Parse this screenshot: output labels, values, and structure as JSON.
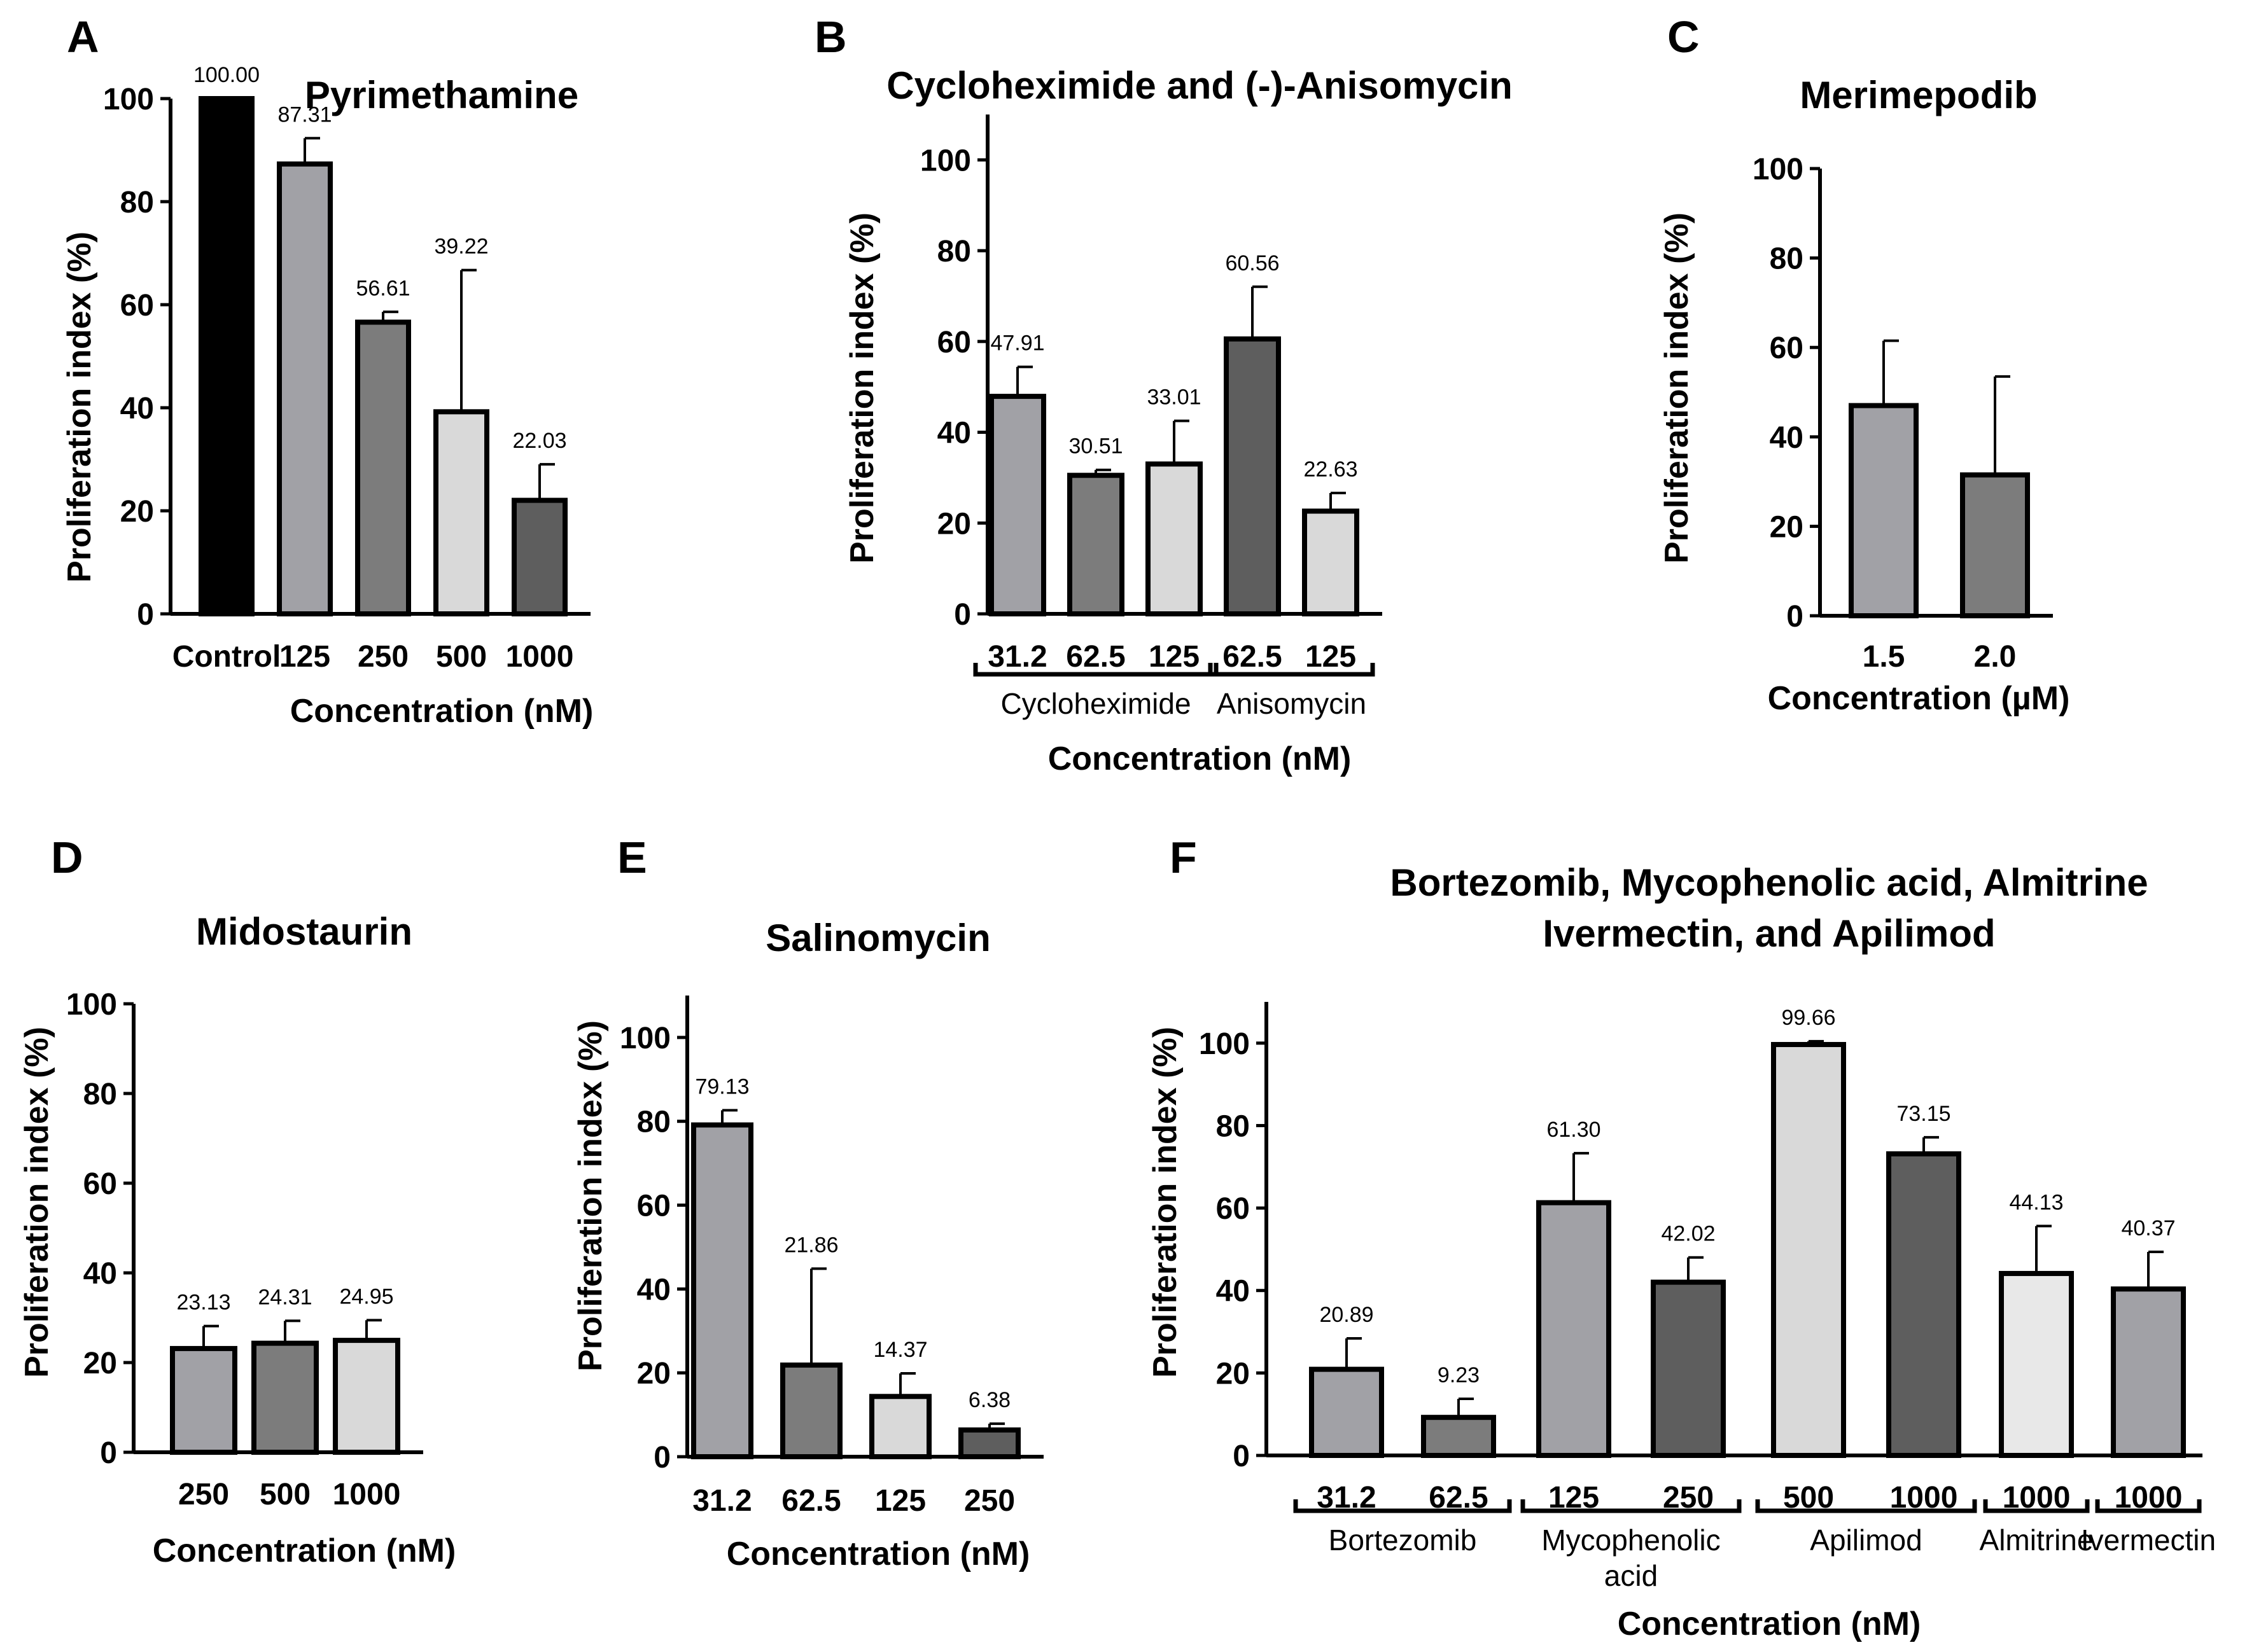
{
  "chart_data": [
    {
      "panel": "A",
      "type": "bar",
      "title": "Pyrimethamine",
      "xlabel": "Concentration (nM)",
      "ylabel": "Proliferation index (%)",
      "ylim": [
        0,
        100
      ],
      "yticks": [
        "0",
        "20",
        "40",
        "60",
        "80",
        "100"
      ],
      "categories": [
        "Control",
        "125",
        "250",
        "500",
        "1000"
      ],
      "values": [
        100,
        87.31,
        56.61,
        39.22,
        22.03
      ],
      "errors": [
        0,
        5,
        2,
        27.5,
        7
      ],
      "labels": [
        "100.00",
        "87.31",
        "56.61",
        "39.22",
        "22.03"
      ],
      "colors": [
        "#000000",
        "#a1a1a6",
        "#7c7c7c",
        "#d9d9d9",
        "#5e5e5e"
      ],
      "groups": []
    },
    {
      "panel": "B",
      "type": "bar",
      "title": "Cycloheximide and (-)-Anisomycin",
      "xlabel": "Concentration (nM)",
      "ylabel": "Proliferation index (%)",
      "ylim": [
        0,
        110
      ],
      "yticks": [
        "0",
        "20",
        "40",
        "60",
        "80",
        "100"
      ],
      "categories": [
        "31.2",
        "62.5",
        "125",
        "62.5",
        "125"
      ],
      "values": [
        47.91,
        30.51,
        33.01,
        60.56,
        22.63
      ],
      "errors": [
        6.5,
        1.2,
        9.5,
        11.5,
        4
      ],
      "labels": [
        "47.91",
        "30.51",
        "33.01",
        "60.56",
        "22.63"
      ],
      "colors": [
        "#a1a1a6",
        "#7c7c7c",
        "#d9d9d9",
        "#5e5e5e",
        "#d9d9d9"
      ],
      "groups": [
        {
          "label": "Cycloheximide",
          "from": 0,
          "to": 2
        },
        {
          "label": "Anisomycin",
          "from": 3,
          "to": 4
        }
      ]
    },
    {
      "panel": "C",
      "type": "bar",
      "title": "Merimepodib",
      "xlabel": "Concentration (µM)",
      "ylabel": "Proliferation index (%)",
      "ylim": [
        0,
        100
      ],
      "yticks": [
        "0",
        "20",
        "40",
        "60",
        "80",
        "100"
      ],
      "categories": [
        "1.5",
        "2.0"
      ],
      "values": [
        47,
        31.5
      ],
      "errors": [
        14.5,
        22
      ],
      "labels": [
        "",
        ""
      ],
      "colors": [
        "#a1a1a6",
        "#7c7c7c"
      ],
      "groups": []
    },
    {
      "panel": "D",
      "type": "bar",
      "title": "Midostaurin",
      "xlabel": "Concentration (nM)",
      "ylabel": "Proliferation index (%)",
      "ylim": [
        0,
        100
      ],
      "yticks": [
        "0",
        "20",
        "40",
        "60",
        "80",
        "100"
      ],
      "categories": [
        "250",
        "500",
        "1000"
      ],
      "values": [
        23.13,
        24.31,
        24.95
      ],
      "errors": [
        5,
        5,
        4.5
      ],
      "labels": [
        "23.13",
        "24.31",
        "24.95"
      ],
      "colors": [
        "#a1a1a6",
        "#7c7c7c",
        "#d9d9d9"
      ],
      "groups": []
    },
    {
      "panel": "E",
      "type": "bar",
      "title": "Salinomycin",
      "xlabel": "Concentration (nM)",
      "ylabel": "Proliferation index (%)",
      "ylim": [
        0,
        110
      ],
      "yticks": [
        "0",
        "20",
        "40",
        "60",
        "80",
        "100"
      ],
      "categories": [
        "31.2",
        "62.5",
        "125",
        "250"
      ],
      "values": [
        79.13,
        21.86,
        14.37,
        6.38
      ],
      "errors": [
        3.5,
        23,
        5.5,
        1.5
      ],
      "labels": [
        "79.13",
        "21.86",
        "14.37",
        "6.38"
      ],
      "colors": [
        "#a1a1a6",
        "#7c7c7c",
        "#d9d9d9",
        "#5e5e5e"
      ],
      "groups": []
    },
    {
      "panel": "F",
      "type": "bar",
      "title": "Bortezomib, Mycophenolic acid, Almitrine",
      "title2": "Ivermectin, and Apilimod",
      "xlabel": "Concentration (nM)",
      "ylabel": "Proliferation index (%)",
      "ylim": [
        0,
        110
      ],
      "yticks": [
        "0",
        "20",
        "40",
        "60",
        "80",
        "100"
      ],
      "categories": [
        "31.2",
        "62.5",
        "125",
        "250",
        "500",
        "1000",
        "1000",
        "1000"
      ],
      "values": [
        20.89,
        9.23,
        61.3,
        42.02,
        99.66,
        73.15,
        44.13,
        40.37
      ],
      "errors": [
        7.5,
        4.5,
        12,
        6,
        0.8,
        4,
        11.5,
        9
      ],
      "labels": [
        "20.89",
        "9.23",
        "61.30",
        "42.02",
        "99.66",
        "73.15",
        "44.13",
        "40.37"
      ],
      "colors": [
        "#a1a1a6",
        "#7c7c7c",
        "#a1a1a6",
        "#5e5e5e",
        "#d9d9d9",
        "#5e5e5e",
        "#e8e8e8",
        "#a1a1a6"
      ],
      "groups": [
        {
          "label": "Bortezomib",
          "from": 0,
          "to": 1
        },
        {
          "label": "Mycophenolic",
          "label2": "acid",
          "from": 2,
          "to": 3
        },
        {
          "label": "Apilimod",
          "from": 4,
          "to": 5
        },
        {
          "label": "Almitrine",
          "from": 6,
          "to": 6
        },
        {
          "label": "Ivermectin",
          "from": 7,
          "to": 7
        }
      ]
    }
  ]
}
